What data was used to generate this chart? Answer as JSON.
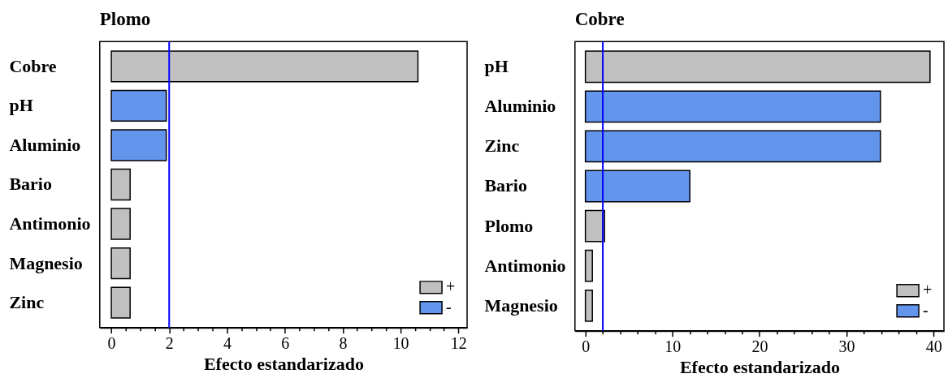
{
  "chart_data": [
    {
      "type": "bar",
      "orientation": "horizontal",
      "title": "Plomo",
      "xlabel": "Efecto estandarizado",
      "categories": [
        "Cobre",
        "pH",
        "Aluminio",
        "Bario",
        "Antimonio",
        "Magnesio",
        "Zinc"
      ],
      "series": [
        {
          "name": "+",
          "color": "#c0c0c0",
          "values": [
            10.6,
            null,
            null,
            0.65,
            0.65,
            0.65,
            0.65
          ]
        },
        {
          "name": "-",
          "color": "#6495ed",
          "values": [
            null,
            1.9,
            1.9,
            null,
            null,
            null,
            null
          ]
        }
      ],
      "xlim": [
        -0.4,
        12.3
      ],
      "xticks": [
        0,
        {
          "value": 0.5,
          "label": null
        },
        {
          "value": 1,
          "label": null
        },
        {
          "value": 1.5,
          "label": null
        },
        2,
        {
          "value": 2.5,
          "label": null
        },
        {
          "value": 3,
          "label": null
        },
        {
          "value": 3.5,
          "label": null
        },
        4,
        {
          "value": 4.5,
          "label": null
        },
        {
          "value": 5,
          "label": null
        },
        {
          "value": 5.5,
          "label": null
        },
        6,
        {
          "value": 6.5,
          "label": null
        },
        {
          "value": 7,
          "label": null
        },
        {
          "value": 7.5,
          "label": null
        },
        8,
        {
          "value": 8.5,
          "label": null
        },
        {
          "value": 9,
          "label": null
        },
        {
          "value": 9.5,
          "label": null
        },
        10,
        {
          "value": 10.5,
          "label": null
        },
        {
          "value": 11,
          "label": null
        },
        {
          "value": 11.5,
          "label": null
        },
        12
      ],
      "ref_lines": [
        {
          "axis": "x",
          "value": 2,
          "color": "#0000ff"
        }
      ],
      "legend": "bottom right",
      "grid": false
    },
    {
      "type": "bar",
      "orientation": "horizontal",
      "title": "Cobre",
      "xlabel": "Efecto estandarizado",
      "categories": [
        "pH",
        "Aluminio",
        "Zinc",
        "Bario",
        "Plomo",
        "Antimonio",
        "Magnesio"
      ],
      "series": [
        {
          "name": "+",
          "color": "#c0c0c0",
          "values": [
            39.6,
            null,
            null,
            null,
            2.2,
            0.8,
            0.8
          ]
        },
        {
          "name": "-",
          "color": "#6495ed",
          "values": [
            null,
            33.9,
            33.9,
            12.0,
            null,
            null,
            null
          ]
        }
      ],
      "xlim": [
        -1.2,
        41.2
      ],
      "xticks": [
        0,
        {
          "value": 2,
          "label": null
        },
        {
          "value": 4,
          "label": null
        },
        {
          "value": 6,
          "label": null
        },
        {
          "value": 8,
          "label": null
        },
        10,
        {
          "value": 12,
          "label": null
        },
        {
          "value": 14,
          "label": null
        },
        {
          "value": 16,
          "label": null
        },
        {
          "value": 18,
          "label": null
        },
        20,
        {
          "value": 22,
          "label": null
        },
        {
          "value": 24,
          "label": null
        },
        {
          "value": 26,
          "label": null
        },
        {
          "value": 28,
          "label": null
        },
        30,
        {
          "value": 32,
          "label": null
        },
        {
          "value": 34,
          "label": null
        },
        {
          "value": 36,
          "label": null
        },
        {
          "value": 38,
          "label": null
        },
        40
      ],
      "ref_lines": [
        {
          "axis": "x",
          "value": 2,
          "color": "#0000ff"
        }
      ],
      "legend": "bottom right",
      "grid": false
    }
  ]
}
